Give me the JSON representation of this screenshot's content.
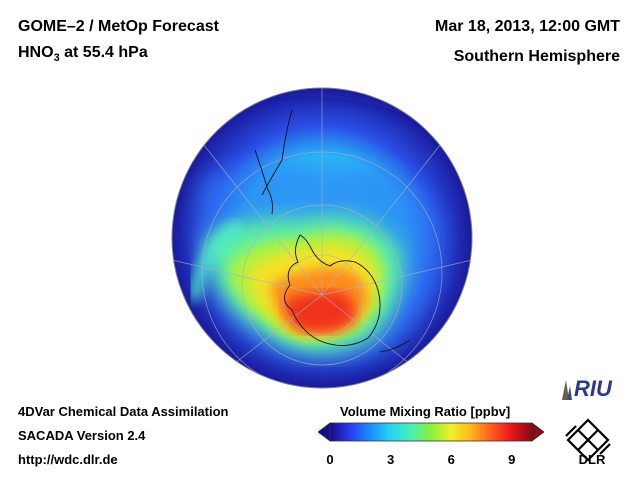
{
  "header": {
    "title": "GOME–2 / MetOp Forecast",
    "species": "HNO",
    "species_sub": "3",
    "level": " at 55.4 hPa",
    "date": "Mar 18, 2013, 12:00 GMT",
    "region": "Southern Hemisphere"
  },
  "footer": {
    "line1": "4DVar Chemical Data Assimilation",
    "line2": "SACADA Version 2.4",
    "line3": "http://wdc.dlr.de"
  },
  "colorbar": {
    "title": "Volume Mixing Ratio [ppbv]",
    "min": 0,
    "max": 10,
    "ticks": [
      "0",
      "3",
      "6",
      "9"
    ],
    "colors": [
      "#1a0a8c",
      "#2a3cf0",
      "#1e8cff",
      "#27d4f0",
      "#46f0b4",
      "#8cf03c",
      "#f0f028",
      "#ffb41e",
      "#ff5a1e",
      "#e6141e",
      "#8c0a14"
    ]
  },
  "logos": {
    "riu": "RIU",
    "dlr": "DLR"
  }
}
